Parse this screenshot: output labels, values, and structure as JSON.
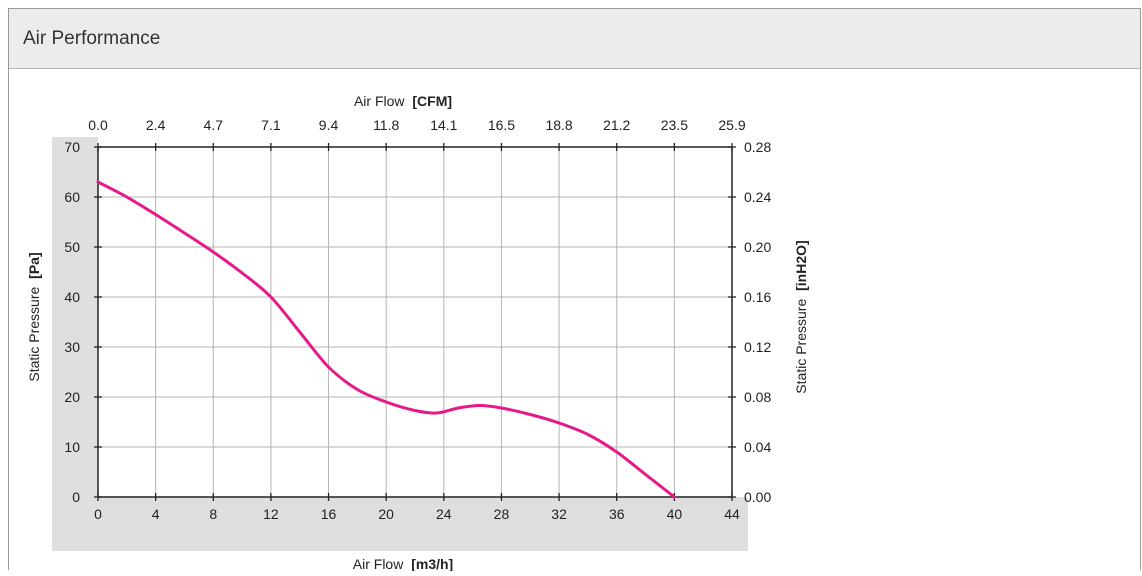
{
  "panel": {
    "title": "Air Performance"
  },
  "chart_data": {
    "type": "line",
    "x_bottom": {
      "label": "Air Flow",
      "unit": "[m3/h]",
      "range": [
        0,
        44
      ],
      "ticks": [
        0,
        4,
        8,
        12,
        16,
        20,
        24,
        28,
        32,
        36,
        40,
        44
      ]
    },
    "x_top": {
      "label": "Air Flow",
      "unit": "[CFM]",
      "ticks": [
        "0.0",
        "2.4",
        "4.7",
        "7.1",
        "9.4",
        "11.8",
        "14.1",
        "16.5",
        "18.8",
        "21.2",
        "23.5",
        "25.9"
      ]
    },
    "y_left": {
      "label": "Static Pressure",
      "unit": "[Pa]",
      "range": [
        0,
        70
      ],
      "ticks": [
        0,
        10,
        20,
        30,
        40,
        50,
        60,
        70
      ]
    },
    "y_right": {
      "label": "Static Pressure",
      "unit": "[inH2O]",
      "ticks": [
        "0.00",
        "0.04",
        "0.08",
        "0.12",
        "0.16",
        "0.20",
        "0.24",
        "0.28"
      ]
    },
    "grid": true,
    "series": [
      {
        "color": "#e6198a",
        "points": [
          [
            0,
            63
          ],
          [
            2,
            60
          ],
          [
            4,
            56.5
          ],
          [
            6,
            52.8
          ],
          [
            8,
            49
          ],
          [
            10,
            44.8
          ],
          [
            12,
            40
          ],
          [
            14,
            33
          ],
          [
            16,
            26
          ],
          [
            18,
            21.5
          ],
          [
            20,
            19
          ],
          [
            22,
            17.3
          ],
          [
            23.5,
            16.8
          ],
          [
            25,
            17.8
          ],
          [
            26.5,
            18.3
          ],
          [
            28,
            17.8
          ],
          [
            30,
            16.5
          ],
          [
            32,
            14.8
          ],
          [
            34,
            12.5
          ],
          [
            36,
            9
          ],
          [
            38,
            4.5
          ],
          [
            40,
            0
          ]
        ]
      }
    ]
  }
}
